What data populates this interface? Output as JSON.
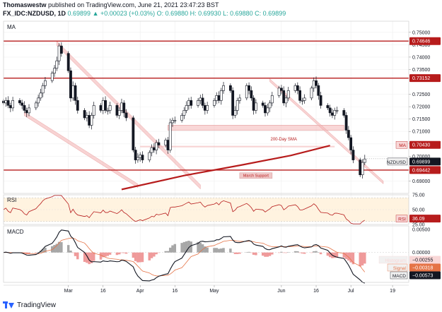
{
  "header": {
    "author": "Thomaswestw",
    "published": "published on TradingView.com, June 21, 2021 23:47:23 BST",
    "symbol": "FX_IDC:NZDUSD, 1D",
    "price": "0.69899",
    "change": "▲ +0.00023 (+0.03%)",
    "ohlc": "O: 0.69880 H: 0.69930 L: 0.69880 C: 0.69899"
  },
  "footer": {
    "brand": "TradingView"
  },
  "colors": {
    "up": "#26a69a",
    "down": "#131722",
    "bear_candle": "#131722",
    "bull_candle": "#ffffff",
    "resistance": "#b71c1c",
    "sma": "#b71c1c",
    "zone": "#f4b6b6",
    "rsi_line": "#b71c1c",
    "rsi_band": "#fff3e0",
    "macd_line": "#131722",
    "signal_line": "#e57346",
    "hist_pos": "#a7a7a7",
    "hist_neg": "#ef9a9a"
  },
  "chart_data": [
    {
      "type": "candlestick",
      "pane_label": "MA",
      "ylim": [
        0.685,
        0.7545
      ],
      "x_axis": {
        "start": "2021-02-01",
        "end": "2021-07-26",
        "tick_labels": [
          "Mar",
          "16",
          "Apr",
          "16",
          "May",
          "Jun",
          "16",
          "Jul",
          "19"
        ],
        "tick_dates": [
          "2021-03-01",
          "2021-03-16",
          "2021-04-01",
          "2021-04-16",
          "2021-05-03",
          "2021-06-01",
          "2021-06-16",
          "2021-07-01",
          "2021-07-19"
        ]
      },
      "y_ticks": [
        "0.75000",
        "0.74500",
        "0.74000",
        "0.73500",
        "0.72500",
        "0.72000",
        "0.71500",
        "0.71000",
        "0.70500",
        "0.70000",
        "0.69000"
      ],
      "y_tick_values": [
        0.75,
        0.745,
        0.74,
        0.735,
        0.725,
        0.72,
        0.715,
        0.71,
        0.705,
        0.7,
        0.69
      ],
      "horizontal_levels": [
        {
          "value": 0.74646,
          "label": "0.74646"
        },
        {
          "value": 0.73152,
          "label": "0.73152"
        },
        {
          "value": 0.69442,
          "label": "0.69442"
        }
      ],
      "price_labels": [
        {
          "name": "MA",
          "value": 0.7043,
          "label": "0.70430"
        },
        {
          "name": "NZDUSD",
          "value": 0.69899,
          "label": "0.69899"
        }
      ],
      "annotations": [
        "200-Day SMA",
        "March Support"
      ],
      "closes": [
        0.7215,
        0.7225,
        0.7205,
        0.7195,
        0.7225,
        0.7215,
        0.7205,
        0.7185,
        0.7175,
        0.7195,
        0.7215,
        0.7235,
        0.7255,
        0.7285,
        0.7305,
        0.7335,
        0.7355,
        0.7385,
        0.7445,
        0.7415,
        0.7345,
        0.7235,
        0.7285,
        0.7225,
        0.7185,
        0.7155,
        0.7165,
        0.7125,
        0.7165,
        0.7205,
        0.7185,
        0.7225,
        0.7185,
        0.7185,
        0.7205,
        0.7165,
        0.7185,
        0.7215,
        0.7175,
        0.7155,
        0.7025,
        0.6985,
        0.6995,
        0.7005,
        0.6985,
        0.7015,
        0.7035,
        0.7025,
        0.7055,
        0.7045,
        0.7065,
        0.7025,
        0.7135,
        0.7145,
        0.7145,
        0.7165,
        0.7185,
        0.7205,
        0.7225,
        0.7205,
        0.7225,
        0.7235,
        0.7205,
        0.7185,
        0.7205,
        0.7225,
        0.7245,
        0.7225,
        0.7265,
        0.7285,
        0.7265,
        0.7165,
        0.7185,
        0.7225,
        0.7235,
        0.7285,
        0.7265,
        0.7235,
        0.7185,
        0.7215,
        0.7205,
        0.7175,
        0.7195,
        0.7215,
        0.7245,
        0.7275,
        0.7265,
        0.7215,
        0.7235,
        0.7265,
        0.7285,
        0.7265,
        0.7225,
        0.7225,
        0.7235,
        0.7275,
        0.7305,
        0.7285,
        0.7245,
        0.7205,
        0.7195,
        0.7175,
        0.7165,
        0.7185,
        0.7185,
        0.7165,
        0.7105,
        0.7075,
        0.7025,
        0.6985,
        0.6925,
        0.6975,
        0.6989
      ]
    },
    {
      "type": "line",
      "pane_label": "RSI",
      "ylim": [
        25,
        75
      ],
      "y_ticks": [
        "75.00",
        "50.00",
        "25.00"
      ],
      "y_tick_values": [
        75,
        50,
        25
      ],
      "band": [
        30,
        70
      ],
      "series": [
        {
          "name": "RSI",
          "last": 36.09,
          "last_label": "36.09"
        }
      ]
    },
    {
      "type": "bar+line",
      "pane_label": "MACD",
      "ylim": [
        -0.0065,
        0.0058
      ],
      "y_ticks": [
        "0.00500",
        "0.00000"
      ],
      "y_tick_values": [
        0.005,
        0
      ],
      "series": [
        {
          "name": "Histogram",
          "last": -0.00255,
          "last_label": "−0.00255"
        },
        {
          "name": "Signal",
          "last": -0.00318,
          "last_label": "−0.00318"
        },
        {
          "name": "MACD",
          "last": -0.00573,
          "last_label": "−0.00573"
        }
      ]
    }
  ]
}
